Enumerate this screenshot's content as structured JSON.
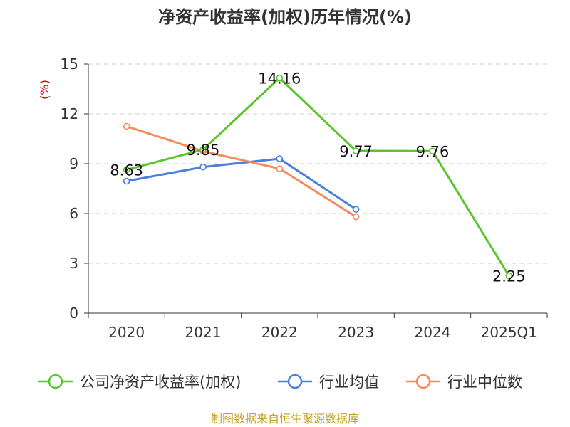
{
  "chart_data": {
    "type": "line",
    "title": "净资产收益率(加权)历年情况(%)",
    "ylabel": "(%)",
    "xlabel": "",
    "categories": [
      "2020",
      "2021",
      "2022",
      "2023",
      "2024",
      "2025Q1"
    ],
    "ylim": [
      0,
      15
    ],
    "yticks": [
      0,
      3,
      6,
      9,
      12,
      15
    ],
    "grid": true,
    "legend_position": "bottom",
    "series": [
      {
        "name": "公司净资产收益率(加权)",
        "color": "#5cc42e",
        "values": [
          8.63,
          9.85,
          14.16,
          9.77,
          9.76,
          2.25
        ],
        "labels": [
          "8.63",
          "9.85",
          "14.16",
          "9.77",
          "9.76",
          "2.25"
        ]
      },
      {
        "name": "行业均值",
        "color": "#4a7fdb",
        "values": [
          7.95,
          8.8,
          9.3,
          6.25,
          null,
          null
        ]
      },
      {
        "name": "行业中位数",
        "color": "#f58b5a",
        "values": [
          11.25,
          9.75,
          8.7,
          5.8,
          null,
          null
        ]
      }
    ]
  },
  "source": {
    "text": "制图数据来自恒生聚源数据库",
    "color": "#c9a227"
  },
  "colors": {
    "ylabel": "#cc0000",
    "axis": "#333333",
    "grid": "#cccccc"
  }
}
